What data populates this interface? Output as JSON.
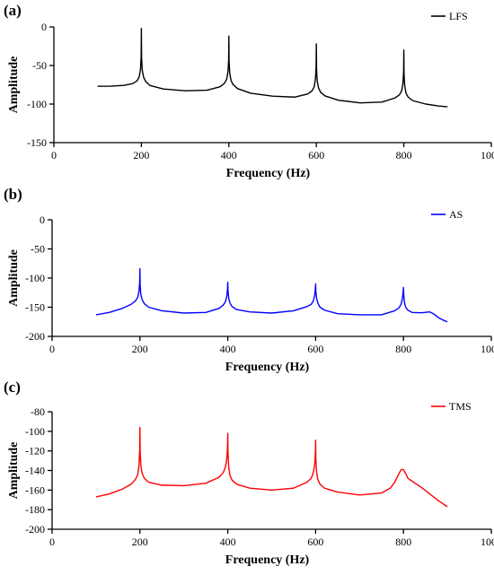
{
  "chart_data": [
    {
      "panel_label": "(a)",
      "type": "line",
      "xlabel": "Frequency (Hz)",
      "ylabel": "Amplitude",
      "xlim": [
        0,
        1000
      ],
      "ylim": [
        -150,
        0
      ],
      "xticks": [
        "0",
        "200",
        "400",
        "600",
        "800",
        "1000"
      ],
      "yticks": [
        "0",
        "-50",
        "-100",
        "-150"
      ],
      "legend": "top-right",
      "series": [
        {
          "name": "LFS",
          "color": "#000000",
          "x": [
            100,
            130,
            160,
            180,
            190,
            195,
            198,
            199.5,
            200,
            200.5,
            202,
            205,
            210,
            220,
            250,
            300,
            350,
            380,
            390,
            395,
            398,
            399.5,
            400,
            400.5,
            402,
            405,
            410,
            420,
            450,
            500,
            550,
            580,
            590,
            595,
            598,
            599.5,
            600,
            600.5,
            602,
            605,
            610,
            620,
            650,
            700,
            750,
            780,
            790,
            795,
            798,
            799.5,
            800,
            800.5,
            802,
            805,
            810,
            820,
            850,
            880,
            900
          ],
          "y": [
            -77,
            -76.8,
            -75.8,
            -73.5,
            -70,
            -65,
            -55,
            -38,
            -2,
            -40,
            -56,
            -65,
            -71,
            -76,
            -80.5,
            -82.8,
            -82,
            -77.5,
            -73,
            -68,
            -58,
            -43,
            -12,
            -45,
            -60,
            -69.5,
            -75,
            -80,
            -86,
            -89.7,
            -91,
            -87,
            -83,
            -78,
            -67,
            -52,
            -22,
            -55,
            -70,
            -79,
            -85,
            -89.5,
            -95,
            -98.5,
            -97.5,
            -92,
            -88,
            -83,
            -73,
            -58,
            -30,
            -61,
            -76,
            -86,
            -91,
            -95.5,
            -100,
            -102.5,
            -103.5
          ]
        }
      ]
    },
    {
      "panel_label": "(b)",
      "type": "line",
      "xlabel": "Frequency (Hz)",
      "ylabel": "Amplitude",
      "xlim": [
        0,
        1000
      ],
      "ylim": [
        -200,
        0
      ],
      "xticks": [
        "0",
        "200",
        "400",
        "600",
        "800",
        "1000"
      ],
      "yticks": [
        "0",
        "-50",
        "-100",
        "-150",
        "-200"
      ],
      "legend": "top-right",
      "series": [
        {
          "name": "AS",
          "color": "#0000ff",
          "x": [
            100,
            130,
            160,
            180,
            190,
            195,
            198,
            199.5,
            200,
            200.5,
            202,
            205,
            210,
            220,
            250,
            300,
            350,
            380,
            390,
            395,
            398,
            399.5,
            400,
            400.5,
            402,
            405,
            410,
            420,
            450,
            500,
            550,
            580,
            590,
            595,
            598,
            599.5,
            600,
            600.5,
            602,
            605,
            610,
            620,
            650,
            700,
            750,
            780,
            790,
            795,
            798,
            799.5,
            800,
            800.5,
            802,
            805,
            810,
            820,
            840,
            860,
            870,
            880,
            890,
            900
          ],
          "y": [
            -163,
            -159,
            -152,
            -145,
            -139,
            -133,
            -122,
            -106,
            -84,
            -112,
            -128,
            -137,
            -144,
            -150,
            -156,
            -160,
            -159,
            -152,
            -146,
            -140,
            -130,
            -117,
            -107,
            -121,
            -134,
            -143,
            -149,
            -154,
            -158,
            -160,
            -156,
            -149,
            -145,
            -139,
            -129,
            -117,
            -110,
            -122,
            -134,
            -143,
            -150,
            -155,
            -161,
            -163,
            -163,
            -156,
            -151,
            -144,
            -133,
            -121,
            -116,
            -127,
            -141,
            -150,
            -155,
            -159,
            -159.5,
            -158,
            -162,
            -168,
            -172,
            -175
          ]
        }
      ]
    },
    {
      "panel_label": "(c)",
      "type": "line",
      "xlabel": "Frequency (Hz)",
      "ylabel": "Amplitude",
      "xlim": [
        0,
        1000
      ],
      "ylim": [
        -200,
        -80
      ],
      "xticks": [
        "0",
        "200",
        "400",
        "600",
        "800",
        "1000"
      ],
      "yticks": [
        "-80",
        "-100",
        "-120",
        "-140",
        "-160",
        "-180",
        "-200"
      ],
      "legend": "top-right",
      "series": [
        {
          "name": "TMS",
          "color": "#ff0000",
          "x": [
            100,
            130,
            160,
            180,
            190,
            195,
            198,
            199.5,
            200,
            200.5,
            202,
            205,
            210,
            220,
            250,
            300,
            350,
            380,
            390,
            395,
            398,
            399.5,
            400,
            400.5,
            402,
            405,
            410,
            420,
            450,
            500,
            550,
            580,
            590,
            595,
            598,
            599.5,
            600,
            600.5,
            602,
            605,
            610,
            620,
            650,
            700,
            750,
            770,
            780,
            790,
            795,
            800,
            805,
            810,
            820,
            830,
            840,
            860,
            880,
            900
          ],
          "y": [
            -167,
            -164,
            -159,
            -154,
            -149,
            -144,
            -134,
            -118,
            -96,
            -120,
            -135,
            -143,
            -148,
            -152,
            -155,
            -155.5,
            -153,
            -147,
            -142,
            -136,
            -127,
            -114,
            -102,
            -122,
            -136,
            -145,
            -150,
            -154,
            -158,
            -160,
            -158,
            -152,
            -148,
            -142,
            -133,
            -122,
            -109,
            -128,
            -141,
            -149,
            -154,
            -158,
            -162,
            -165,
            -163,
            -158,
            -152,
            -143,
            -139,
            -139,
            -143,
            -148,
            -151,
            -154,
            -157,
            -164,
            -171,
            -177
          ]
        }
      ]
    }
  ]
}
